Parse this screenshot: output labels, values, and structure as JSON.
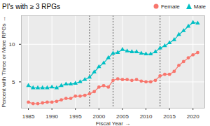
{
  "chart_data": {
    "type": "line",
    "title": "PI's with ≥ 3 RPGs",
    "x_label": "Fiscal Year",
    "y_label": "Percent with Three or More RPGs",
    "x": [
      1985,
      1986,
      1987,
      1988,
      1989,
      1990,
      1991,
      1992,
      1993,
      1994,
      1995,
      1996,
      1997,
      1998,
      1999,
      2000,
      2001,
      2002,
      2003,
      2004,
      2005,
      2006,
      2007,
      2008,
      2009,
      2010,
      2011,
      2012,
      2013,
      2014,
      2015,
      2016,
      2017,
      2018,
      2019,
      2020,
      2021
    ],
    "series": [
      {
        "name": "Female",
        "color": "#F8766D",
        "marker": "circle",
        "values": [
          2.3,
          2.1,
          2.1,
          2.2,
          2.3,
          2.3,
          2.4,
          2.6,
          2.8,
          2.8,
          3.1,
          3.1,
          3.2,
          3.4,
          3.7,
          4.3,
          4.5,
          4.3,
          5.2,
          5.4,
          5.3,
          5.3,
          5.2,
          5.3,
          5.1,
          5.0,
          5.0,
          5.2,
          5.8,
          6.0,
          6.0,
          6.4,
          7.2,
          7.7,
          8.2,
          8.6,
          8.9
        ]
      },
      {
        "name": "Male",
        "color": "#00BFC4",
        "marker": "triangle",
        "values": [
          4.5,
          4.2,
          4.2,
          4.2,
          4.2,
          4.3,
          4.2,
          4.5,
          4.7,
          4.7,
          4.8,
          5.0,
          5.3,
          5.6,
          6.3,
          7.0,
          7.5,
          8.2,
          8.8,
          8.9,
          9.3,
          9.1,
          9.0,
          9.0,
          8.8,
          8.7,
          8.7,
          9.0,
          9.5,
          9.8,
          10.2,
          10.6,
          11.3,
          11.8,
          12.4,
          12.9,
          12.8
        ]
      }
    ],
    "reference_lines": [
      1998,
      2003,
      2013
    ],
    "xlim": [
      1983.5,
      2022.5
    ],
    "xticks": [
      1985,
      1990,
      1995,
      2000,
      2005,
      2010,
      2015,
      2020
    ],
    "ylim": [
      1.5,
      13.8
    ],
    "yticks": [
      5,
      10
    ],
    "grid": true,
    "legend": "top-right"
  }
}
